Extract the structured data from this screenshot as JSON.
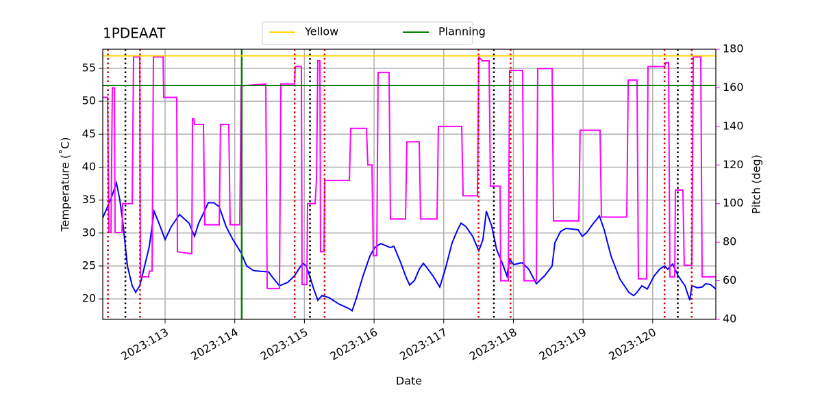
{
  "chart_data": {
    "type": "line",
    "title": "1PDEAAT",
    "xlabel": "Date",
    "ylabel": "Temperature ($^\\circ$C)",
    "y2label": "Pitch (deg)",
    "xlim": [
      112.105,
      120.906
    ],
    "xticks": [
      {
        "value": 113,
        "label": "2023:113"
      },
      {
        "value": 114,
        "label": "2023:114"
      },
      {
        "value": 115,
        "label": "2023:115"
      },
      {
        "value": 116,
        "label": "2023:116"
      },
      {
        "value": 117,
        "label": "2023:117"
      },
      {
        "value": 118,
        "label": "2023:118"
      },
      {
        "value": 119,
        "label": "2023:119"
      },
      {
        "value": 120,
        "label": "2023:120"
      }
    ],
    "ylim": [
      16.9,
      57.9
    ],
    "yticks": [
      20,
      25,
      30,
      35,
      40,
      45,
      50,
      55
    ],
    "y2lim": [
      40,
      180
    ],
    "y2ticks": [
      40,
      60,
      80,
      100,
      120,
      140,
      160,
      180
    ],
    "grid": true,
    "legend": "upper center",
    "series": [
      {
        "color": "#0000ff",
        "x": [
          112.105,
          112.174,
          112.233,
          112.302,
          112.351,
          112.4,
          112.459,
          112.528,
          112.577,
          112.636,
          112.695,
          112.774,
          112.843,
          112.911,
          113.0,
          113.089,
          113.206,
          113.344,
          113.383,
          113.423,
          113.482,
          113.551,
          113.619,
          113.698,
          113.777,
          113.875,
          113.973,
          114.091,
          114.17,
          114.268,
          114.367,
          114.485,
          114.563,
          114.642,
          114.76,
          114.858,
          114.917,
          114.976,
          115.026,
          115.075,
          115.134,
          115.193,
          115.252,
          115.35,
          115.498,
          115.645,
          115.684,
          115.743,
          115.842,
          115.94,
          116.009,
          116.097,
          116.186,
          116.235,
          116.284,
          116.383,
          116.451,
          116.51,
          116.579,
          116.648,
          116.707,
          116.776,
          116.845,
          116.943,
          117.022,
          117.12,
          117.199,
          117.248,
          117.317,
          117.415,
          117.504,
          117.563,
          117.612,
          117.69,
          117.759,
          117.838,
          117.907,
          117.946,
          118.005,
          118.123,
          118.221,
          118.33,
          118.448,
          118.556,
          118.595,
          118.674,
          118.752,
          118.929,
          118.988,
          119.047,
          119.136,
          119.234,
          119.303,
          119.401,
          119.529,
          119.657,
          119.726,
          119.775,
          119.844,
          119.922,
          120.021,
          120.1,
          120.168,
          120.217,
          120.286,
          120.365,
          120.463,
          120.532,
          120.562,
          120.64,
          120.709,
          120.758,
          120.827,
          120.906
        ],
        "values": [
          32.3,
          34,
          35.5,
          37.6,
          35,
          31,
          25,
          22,
          21,
          22,
          24.5,
          28,
          33.3,
          31.5,
          29,
          31,
          32.8,
          31.5,
          30.5,
          29.5,
          31.5,
          33,
          34.6,
          34.6,
          34,
          31,
          29,
          27,
          25,
          24.3,
          24.2,
          24.1,
          23,
          22,
          22.5,
          23.5,
          24.5,
          25.4,
          25,
          23.5,
          21.5,
          19.8,
          20.5,
          20.2,
          19.2,
          18.5,
          18.2,
          20,
          23.5,
          26.5,
          27.8,
          28.4,
          28,
          27.8,
          28,
          25.5,
          23.5,
          22.1,
          22.8,
          24.5,
          25.4,
          24.5,
          23.5,
          21.8,
          24.5,
          28.5,
          30.5,
          31.5,
          31,
          29.5,
          27.3,
          29,
          33.3,
          31,
          27.5,
          25.5,
          23.5,
          26,
          25.2,
          25.5,
          24.5,
          22.3,
          23.5,
          25,
          28.5,
          30.2,
          30.7,
          30.5,
          29.5,
          30,
          31.3,
          32.6,
          30.5,
          26.5,
          23,
          21,
          20.5,
          21,
          22,
          21.5,
          23.5,
          24.5,
          25,
          24.5,
          25.3,
          23.5,
          22,
          19.8,
          22,
          21.7,
          21.8,
          22.3,
          22.2,
          21.5
        ]
      },
      {
        "color": "#ff00ff",
        "axis": "y2",
        "x": [
          112.105,
          112.174,
          112.194,
          112.223,
          112.243,
          112.272,
          112.282,
          112.381,
          112.39,
          112.528,
          112.548,
          112.636,
          112.646,
          112.764,
          112.774,
          112.813,
          112.833,
          112.971,
          112.98,
          113.167,
          113.177,
          113.383,
          113.393,
          113.413,
          113.423,
          113.551,
          113.57,
          113.777,
          113.796,
          113.914,
          113.934,
          114.072,
          114.091,
          114.445,
          114.465,
          114.642,
          114.662,
          114.858,
          114.868,
          114.957,
          114.967,
          115.035,
          115.045,
          115.153,
          115.173,
          115.193,
          115.222,
          115.232,
          115.281,
          115.291,
          115.645,
          115.665,
          115.891,
          115.911,
          115.97,
          115.989,
          116.038,
          116.058,
          116.215,
          116.235,
          116.451,
          116.471,
          116.648,
          116.668,
          116.904,
          116.923,
          117.258,
          117.278,
          117.484,
          117.504,
          117.553,
          117.651,
          117.671,
          117.809,
          117.818,
          117.926,
          117.946,
          118.133,
          118.153,
          118.33,
          118.349,
          118.556,
          118.576,
          118.939,
          118.958,
          119.244,
          119.264,
          119.628,
          119.648,
          119.775,
          119.795,
          119.913,
          119.932,
          120.168,
          120.188,
          120.227,
          120.247,
          120.316,
          120.326,
          120.434,
          120.453,
          120.562,
          120.582,
          120.69,
          120.709,
          120.906
        ],
        "values": [
          155,
          155,
          85,
          85,
          160,
          160,
          85,
          85,
          100,
          100,
          176,
          176,
          62,
          62,
          65,
          65,
          176,
          176,
          155,
          155,
          75,
          74,
          144,
          144,
          141,
          141,
          89,
          89,
          141,
          141,
          89,
          89,
          161,
          162,
          56,
          56,
          162,
          162,
          171,
          171,
          58,
          58,
          100,
          100,
          112,
          174,
          174,
          75,
          75,
          112,
          112,
          139,
          139,
          120,
          120,
          73,
          73,
          168,
          168,
          92,
          92,
          132,
          132,
          92,
          92,
          140,
          140,
          104,
          104,
          176,
          174,
          174,
          109,
          109,
          60,
          60,
          169,
          169,
          60,
          60,
          170,
          170,
          91,
          91,
          138,
          138,
          93,
          93,
          164,
          164,
          61,
          61,
          171,
          171,
          173,
          173,
          62,
          62,
          107,
          107,
          68,
          68,
          176,
          176,
          62,
          62
        ]
      }
    ],
    "hlines": [
      {
        "name": "Yellow",
        "value": 56.9,
        "color": "#ffd700"
      },
      {
        "name": "Planning",
        "value": 52.4,
        "color": "#008000"
      }
    ],
    "vlines": [
      {
        "x": [
          112.18,
          112.64,
          114.86,
          115.29,
          117.5,
          117.96,
          120.17,
          120.56
        ],
        "color": "#d00000",
        "style": "dotted"
      },
      {
        "x": [
          112.43,
          115.08,
          117.72,
          120.36
        ],
        "color": "#000000",
        "style": "dotted"
      },
      {
        "x": [
          114.1
        ],
        "color": "#008000",
        "style": "solid"
      }
    ]
  }
}
